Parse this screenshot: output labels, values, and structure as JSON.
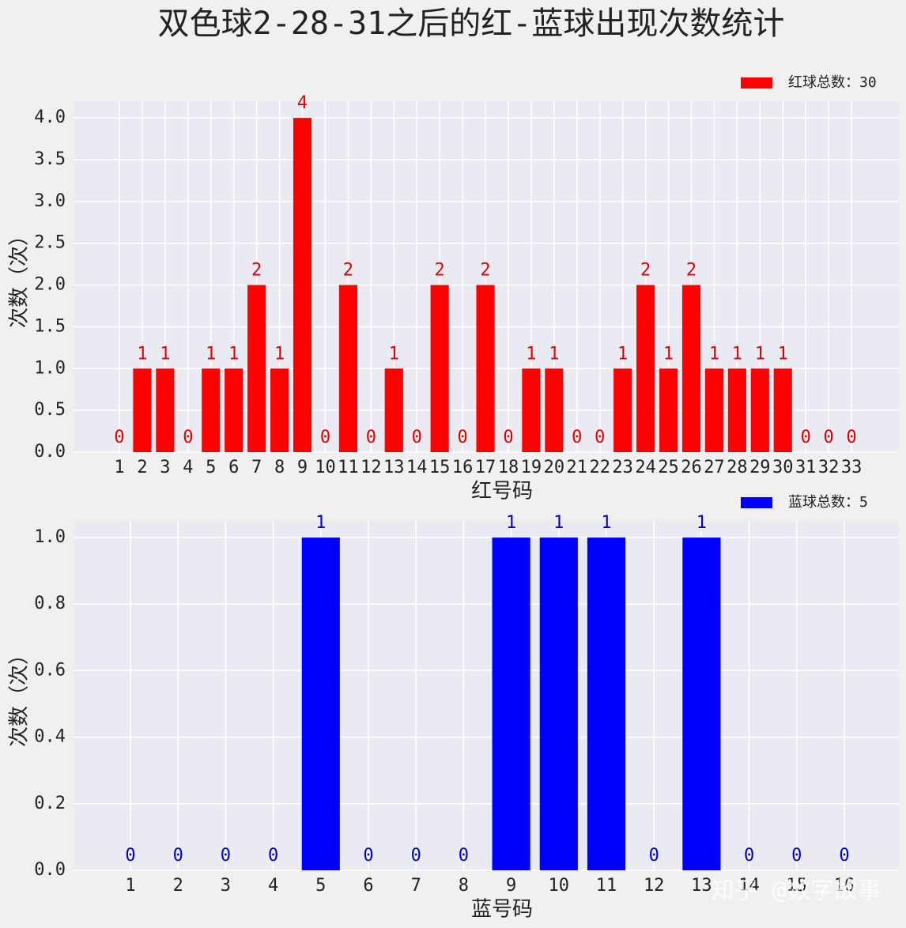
{
  "title": "双色球2-28-31之后的红-蓝球出现次数统计",
  "watermark": "知乎 @数字故事",
  "chart_data": [
    {
      "type": "bar",
      "xlabel": "红号码",
      "ylabel": "次数（次）",
      "categories": [
        "1",
        "2",
        "3",
        "4",
        "5",
        "6",
        "7",
        "8",
        "9",
        "10",
        "11",
        "12",
        "13",
        "14",
        "15",
        "16",
        "17",
        "18",
        "19",
        "20",
        "21",
        "22",
        "23",
        "24",
        "25",
        "26",
        "27",
        "28",
        "29",
        "30",
        "31",
        "32",
        "33"
      ],
      "series": [
        {
          "name": "红球总数：30",
          "color": "#ff0000",
          "values": [
            0,
            1,
            1,
            0,
            1,
            1,
            2,
            1,
            4,
            0,
            2,
            0,
            1,
            0,
            2,
            0,
            2,
            0,
            1,
            1,
            0,
            0,
            1,
            2,
            1,
            2,
            1,
            1,
            1,
            1,
            0,
            0,
            0
          ]
        }
      ],
      "ylim": [
        0,
        4.2
      ],
      "yticks": [
        {
          "value": 0,
          "label": "0.0"
        },
        {
          "value": 0.5,
          "label": "0.5"
        },
        {
          "value": 1,
          "label": "1.0"
        },
        {
          "value": 1.5,
          "label": "1.5"
        },
        {
          "value": 2,
          "label": "2.0"
        },
        {
          "value": 2.5,
          "label": "2.5"
        },
        {
          "value": 3,
          "label": "3.0"
        },
        {
          "value": 3.5,
          "label": "3.5"
        },
        {
          "value": 4,
          "label": "4.0"
        }
      ],
      "grid": true,
      "legend": "upper right"
    },
    {
      "type": "bar",
      "xlabel": "蓝号码",
      "ylabel": "次数（次）",
      "categories": [
        "1",
        "2",
        "3",
        "4",
        "5",
        "6",
        "7",
        "8",
        "9",
        "10",
        "11",
        "12",
        "13",
        "14",
        "15",
        "16"
      ],
      "series": [
        {
          "name": "蓝球总数：5",
          "color": "#0000ff",
          "values": [
            0,
            0,
            0,
            0,
            1,
            0,
            0,
            0,
            1,
            1,
            1,
            0,
            1,
            0,
            0,
            0
          ]
        }
      ],
      "ylim": [
        0,
        1.05
      ],
      "yticks": [
        {
          "value": 0,
          "label": "0.0"
        },
        {
          "value": 0.2,
          "label": "0.2"
        },
        {
          "value": 0.4,
          "label": "0.4"
        },
        {
          "value": 0.6,
          "label": "0.6"
        },
        {
          "value": 0.8,
          "label": "0.8"
        },
        {
          "value": 1,
          "label": "1.0"
        }
      ],
      "grid": true,
      "legend": "upper right"
    }
  ]
}
